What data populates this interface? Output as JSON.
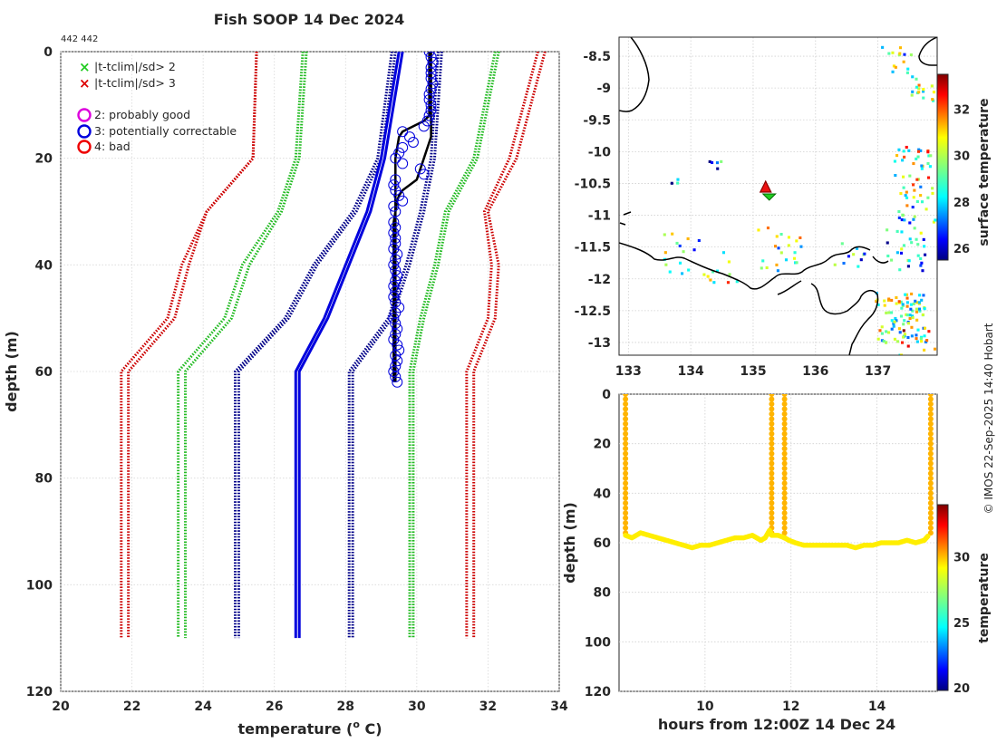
{
  "chart_data": [
    {
      "type": "line",
      "name": "profile",
      "title": "Fish SOOP 14 Dec 2024",
      "id_note": "442 442",
      "xlabel": "temperature (",
      "xlabel_sup": "o",
      "xlabel_end": " C)",
      "ylabel": "depth (m)",
      "xlim": [
        20,
        34
      ],
      "ylim": [
        0,
        120
      ],
      "xticks": [
        20,
        22,
        24,
        26,
        28,
        30,
        32,
        34
      ],
      "yticks": [
        0,
        20,
        40,
        60,
        80,
        100,
        120
      ],
      "legend": [
        {
          "label": "|t-tclim|/sd> 2",
          "marker": "x",
          "color": "#22cc22"
        },
        {
          "label": "|t-tclim|/sd> 3",
          "marker": "x",
          "color": "#dd0000"
        },
        {
          "label": "2: probably good",
          "marker": "o",
          "color": "#dd00dd"
        },
        {
          "label": "3: potentially correctable",
          "marker": "o",
          "color": "#0000dd"
        },
        {
          "label": "4: bad",
          "marker": "o",
          "color": "#ee0000"
        }
      ],
      "depth": [
        0,
        20,
        30,
        40,
        50,
        60,
        110
      ],
      "series": [
        {
          "name": "clim -3sd a",
          "color": "#cc0000",
          "style": "dotted",
          "values": [
            25.5,
            25.4,
            24.1,
            23.4,
            23.0,
            21.7,
            21.7
          ]
        },
        {
          "name": "clim -3sd b",
          "color": "#cc0000",
          "style": "dotted",
          "values": [
            25.5,
            25.4,
            24.1,
            23.6,
            23.2,
            21.9,
            21.9
          ]
        },
        {
          "name": "clim -2sd a",
          "color": "#22bb22",
          "style": "dotted",
          "values": [
            26.8,
            26.6,
            26.1,
            25.1,
            24.6,
            23.3,
            23.3
          ]
        },
        {
          "name": "clim -2sd b",
          "color": "#22bb22",
          "style": "dotted",
          "values": [
            26.9,
            26.7,
            26.2,
            25.3,
            24.8,
            23.5,
            23.5
          ]
        },
        {
          "name": "clim -1sd a",
          "color": "#000088",
          "style": "dotted",
          "values": [
            29.3,
            28.9,
            28.2,
            27.1,
            26.3,
            24.9,
            24.9
          ]
        },
        {
          "name": "clim -1sd b",
          "color": "#000088",
          "style": "dotted",
          "values": [
            29.4,
            29.0,
            28.3,
            27.2,
            26.4,
            25.0,
            25.0
          ]
        },
        {
          "name": "clim mean a",
          "color": "#0000dd",
          "style": "solid",
          "values": [
            29.5,
            29.0,
            28.6,
            28.0,
            27.4,
            26.6,
            26.6
          ]
        },
        {
          "name": "clim mean b",
          "color": "#0000dd",
          "style": "solid",
          "values": [
            29.6,
            29.1,
            28.7,
            28.1,
            27.5,
            26.7,
            26.7
          ]
        },
        {
          "name": "clim +1sd a",
          "color": "#000088",
          "style": "dotted",
          "values": [
            30.6,
            30.4,
            30.1,
            29.7,
            29.2,
            28.1,
            28.1
          ]
        },
        {
          "name": "clim +1sd b",
          "color": "#000088",
          "style": "dotted",
          "values": [
            30.7,
            30.5,
            30.2,
            29.8,
            29.3,
            28.2,
            28.2
          ]
        },
        {
          "name": "clim +2sd a",
          "color": "#22bb22",
          "style": "dotted",
          "values": [
            32.2,
            31.6,
            30.8,
            30.5,
            30.1,
            29.8,
            29.8
          ]
        },
        {
          "name": "clim +2sd b",
          "color": "#22bb22",
          "style": "dotted",
          "values": [
            32.3,
            31.7,
            30.9,
            30.6,
            30.2,
            29.9,
            29.9
          ]
        },
        {
          "name": "clim +3sd a",
          "color": "#cc0000",
          "style": "dotted",
          "values": [
            33.4,
            32.6,
            31.9,
            32.1,
            32.0,
            31.4,
            31.4
          ]
        },
        {
          "name": "clim +3sd b",
          "color": "#cc0000",
          "style": "dotted",
          "values": [
            33.6,
            32.8,
            32.0,
            32.3,
            32.2,
            31.6,
            31.6
          ]
        }
      ],
      "profile": {
        "color": "#000000",
        "depth": [
          0,
          2,
          8,
          12,
          13,
          14,
          15,
          16,
          18,
          20,
          22,
          24,
          25,
          26,
          28,
          30,
          35,
          40,
          45,
          50,
          55,
          60,
          62
        ],
        "values": [
          30.35,
          30.35,
          30.35,
          30.35,
          30.2,
          29.9,
          29.6,
          29.5,
          29.45,
          29.4,
          29.4,
          29.4,
          29.4,
          29.4,
          29.4,
          29.4,
          29.4,
          29.4,
          29.4,
          29.4,
          29.4,
          29.4,
          29.4
        ]
      },
      "profile_b": {
        "color": "#000000",
        "depth": [
          0,
          8,
          16,
          18,
          20,
          22,
          24,
          25,
          26,
          27,
          28,
          30,
          32,
          40,
          50,
          60,
          62
        ],
        "values": [
          30.4,
          30.4,
          30.4,
          30.3,
          30.2,
          30.1,
          30.0,
          29.8,
          29.6,
          29.5,
          29.45,
          29.4,
          29.35,
          29.35,
          29.35,
          29.35,
          29.35
        ]
      },
      "flags": {
        "color": "#0000dd",
        "depth": [
          0,
          1,
          2,
          3,
          4,
          5,
          6,
          7,
          8,
          9,
          10,
          11,
          12,
          13,
          14,
          15,
          16,
          17,
          18,
          19,
          20,
          21,
          22,
          23,
          24,
          25,
          26,
          27,
          28,
          29,
          30,
          32,
          33,
          34,
          35,
          36,
          37,
          38,
          39,
          40,
          41,
          42,
          43,
          44,
          45,
          46,
          47,
          48,
          49,
          50,
          51,
          52,
          53,
          54,
          55,
          56,
          57,
          58,
          59,
          60,
          61,
          62
        ],
        "values": [
          30.35,
          30.4,
          30.45,
          30.4,
          30.4,
          30.4,
          30.45,
          30.4,
          30.35,
          30.35,
          30.4,
          30.4,
          30.35,
          30.3,
          30.2,
          29.6,
          29.8,
          29.9,
          29.6,
          29.5,
          29.4,
          29.6,
          30.1,
          30.2,
          29.4,
          29.35,
          29.4,
          29.5,
          29.6,
          29.35,
          29.4,
          29.35,
          29.4,
          29.35,
          29.4,
          29.4,
          29.35,
          29.45,
          29.4,
          29.35,
          29.4,
          29.45,
          29.4,
          29.35,
          29.4,
          29.35,
          29.4,
          29.5,
          29.4,
          29.35,
          29.4,
          29.45,
          29.4,
          29.35,
          29.45,
          29.5,
          29.4,
          29.45,
          29.4,
          29.35,
          29.4,
          29.45
        ]
      }
    },
    {
      "type": "heatmap",
      "name": "map",
      "colorbar_label": "surface temperature",
      "xlim": [
        132.85,
        137.95
      ],
      "ylim": [
        -13.2,
        -8.2
      ],
      "xticks": [
        133,
        134,
        135,
        136,
        137
      ],
      "yticks": [
        -8.5,
        -9,
        -9.5,
        -10,
        -10.5,
        -11,
        -11.5,
        -12,
        -12.5,
        -13
      ],
      "xtick_labels": [
        "133",
        "134",
        "135",
        "136",
        "137"
      ],
      "ytick_labels": [
        "-8.5",
        "-9",
        "-9.5",
        "-10",
        "-10.5",
        "-11",
        "-11.5",
        "-12",
        "-12.5",
        "-13"
      ],
      "clim": [
        25.5,
        33.5
      ],
      "cbar_ticks": [
        26,
        28,
        30,
        32
      ],
      "station": {
        "lon": 135.2,
        "lat": -10.55
      },
      "pixel_clusters": [
        {
          "lon": 137.3,
          "lat": -8.55,
          "n": 14,
          "spread": 0.25,
          "temp": 29
        },
        {
          "lon": 137.7,
          "lat": -9.0,
          "n": 16,
          "spread": 0.2,
          "temp": 29.5
        },
        {
          "lon": 137.55,
          "lat": -10.2,
          "n": 30,
          "spread": 0.3,
          "temp": 30
        },
        {
          "lon": 137.6,
          "lat": -10.8,
          "n": 28,
          "spread": 0.3,
          "temp": 29
        },
        {
          "lon": 137.4,
          "lat": -11.5,
          "n": 28,
          "spread": 0.35,
          "temp": 28
        },
        {
          "lon": 137.35,
          "lat": -12.6,
          "n": 90,
          "spread": 0.4,
          "temp": 29.5
        },
        {
          "lon": 137.6,
          "lat": -13.05,
          "n": 20,
          "spread": 0.3,
          "temp": 31
        },
        {
          "lon": 135.4,
          "lat": -11.5,
          "n": 22,
          "spread": 0.35,
          "temp": 29.5
        },
        {
          "lon": 133.9,
          "lat": -11.6,
          "n": 16,
          "spread": 0.35,
          "temp": 29
        },
        {
          "lon": 134.5,
          "lat": -11.8,
          "n": 10,
          "spread": 0.25,
          "temp": 30
        },
        {
          "lon": 136.5,
          "lat": -11.7,
          "n": 10,
          "spread": 0.3,
          "temp": 28.5
        },
        {
          "lon": 134.4,
          "lat": -10.15,
          "n": 5,
          "spread": 0.12,
          "temp": 28
        },
        {
          "lon": 133.7,
          "lat": -10.45,
          "n": 3,
          "spread": 0.1,
          "temp": 27
        }
      ]
    },
    {
      "type": "scatter",
      "name": "track",
      "xlabel": "hours from 12:00Z 14 Dec 24",
      "ylabel": "depth (m)",
      "colorbar_label": "temperature",
      "xlim": [
        8.0,
        15.4
      ],
      "ylim": [
        0,
        120
      ],
      "xticks": [
        10,
        12,
        14
      ],
      "yticks": [
        0,
        20,
        40,
        60,
        80,
        100,
        120
      ],
      "clim": [
        19.8,
        34
      ],
      "cbar_ticks": [
        20,
        25,
        30
      ],
      "descent_color": "#ffb400",
      "bottom_color": "#ffee00",
      "x": [
        8.15,
        8.3,
        8.5,
        8.7,
        8.9,
        9.1,
        9.3,
        9.5,
        9.7,
        9.9,
        10.1,
        10.3,
        10.5,
        10.7,
        10.9,
        11.1,
        11.2,
        11.3,
        11.4,
        11.5,
        11.55,
        11.7,
        11.85,
        11.95,
        12.1,
        12.3,
        12.5,
        12.7,
        12.9,
        13.1,
        13.3,
        13.5,
        13.7,
        13.9,
        14.1,
        14.3,
        14.5,
        14.7,
        14.9,
        15.1,
        15.2
      ],
      "y": [
        57,
        58,
        56,
        57,
        58,
        59,
        60,
        61,
        62,
        61,
        61,
        60,
        59,
        58,
        58,
        57,
        58,
        59,
        58,
        55,
        57,
        57,
        58,
        59,
        60,
        61,
        61,
        61,
        61,
        61,
        61,
        62,
        61,
        61,
        60,
        60,
        60,
        59,
        60,
        59,
        57
      ],
      "casts": [
        {
          "x": 8.15,
          "bottom": 57
        },
        {
          "x": 11.55,
          "bottom": 56
        },
        {
          "x": 11.85,
          "bottom": 58
        },
        {
          "x": 15.25,
          "bottom": 57
        }
      ]
    }
  ],
  "footer": {
    "credit": "© IMOS 22-Sep-2025 14:40 Hobart"
  }
}
